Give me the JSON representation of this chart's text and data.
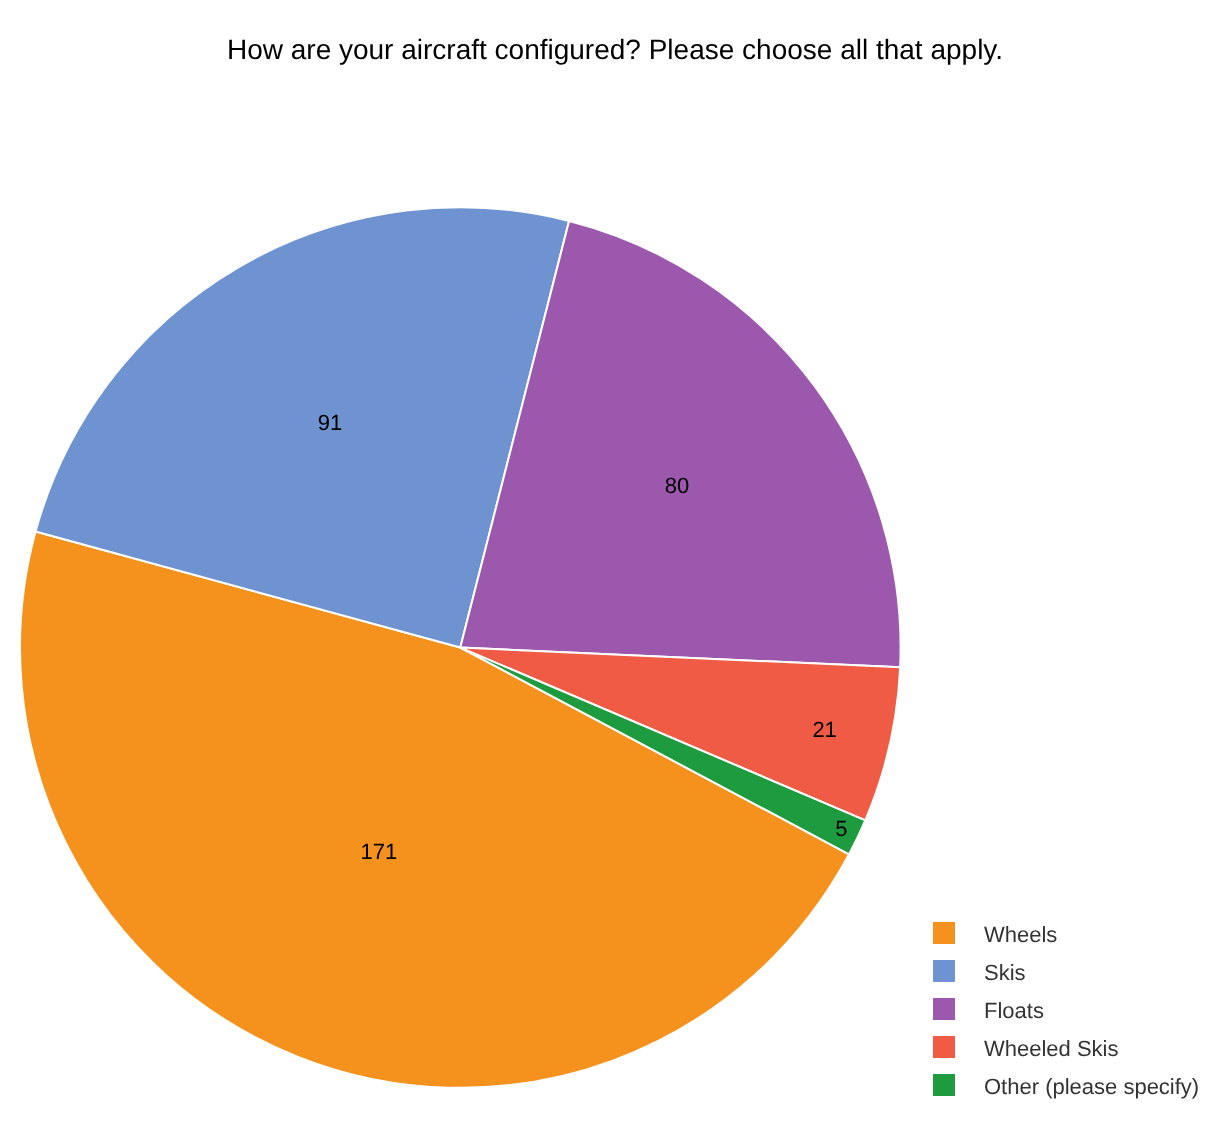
{
  "chart_data": {
    "type": "pie",
    "title": "How are your aircraft configured? Please choose all that apply.",
    "categories": [
      "Wheels",
      "Skis",
      "Floats",
      "Wheeled Skis",
      "Other (please specify)"
    ],
    "values": [
      171,
      91,
      80,
      21,
      5
    ],
    "colors": [
      "#f5921e",
      "#6f93d1",
      "#9c58ad",
      "#ef5b45",
      "#1e9a3f"
    ],
    "data_labels": true,
    "legend": "bottom right"
  }
}
